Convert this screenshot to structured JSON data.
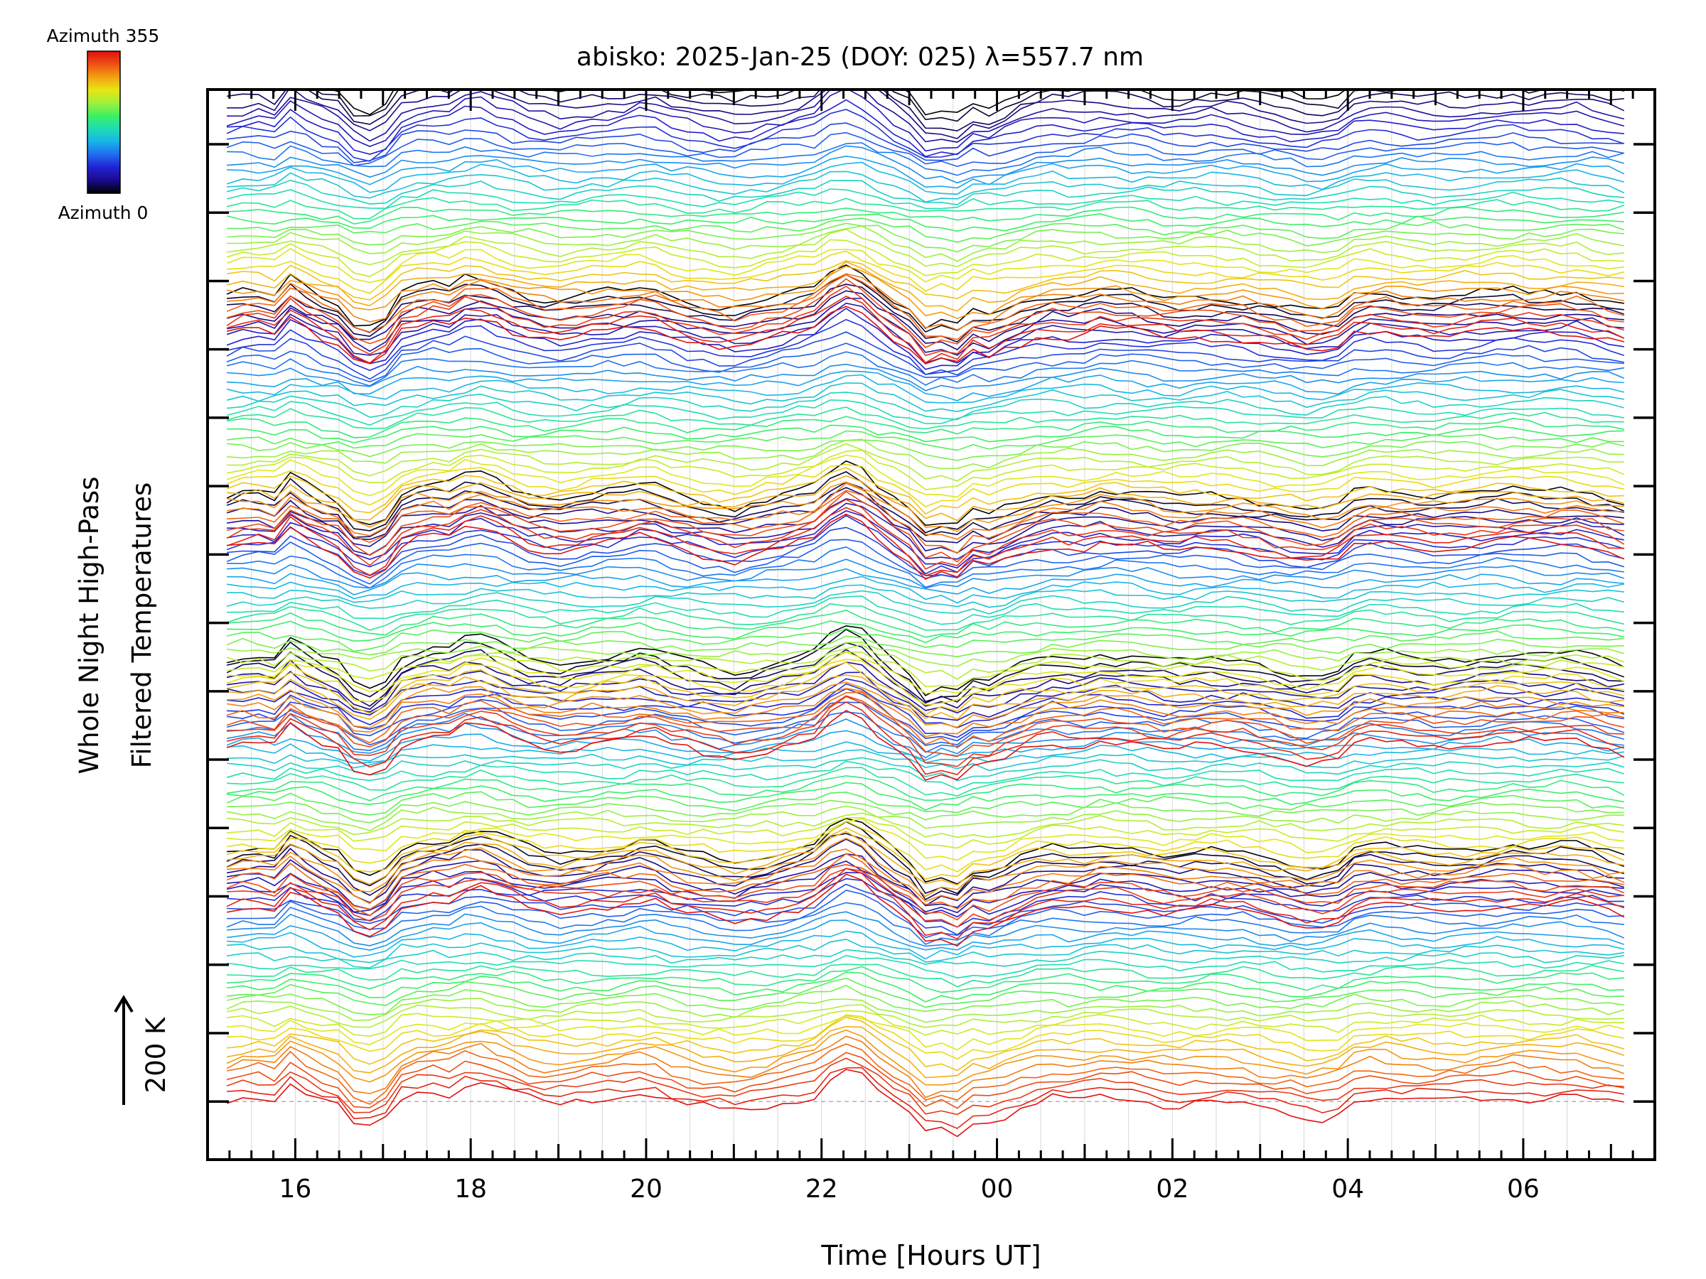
{
  "chart_data": {
    "type": "line",
    "title": "abisko: 2025-Jan-25 (DOY: 025) λ=557.7 nm",
    "xlabel": "Time [Hours UT]",
    "ylabel_line1": "Whole Night High-Pass",
    "ylabel_line2": "Filtered Temperatures",
    "scale_label": "200 K",
    "colorbar": {
      "top_label": "Azimuth 355",
      "bottom_label": "Azimuth 0",
      "colormap": [
        "#000000",
        "#1a0a8c",
        "#2222d4",
        "#1e6cf0",
        "#18b4e8",
        "#1edcb4",
        "#3cf064",
        "#a0f03c",
        "#e8e614",
        "#f4a010",
        "#ee5014",
        "#e01010"
      ]
    },
    "x_ticks": [
      {
        "hour": 0,
        "label": "16"
      },
      {
        "hour": 2,
        "label": "18"
      },
      {
        "hour": 4,
        "label": "20"
      },
      {
        "hour": 6,
        "label": "22"
      },
      {
        "hour": 8,
        "label": "00"
      },
      {
        "hour": 10,
        "label": "02"
      },
      {
        "hour": 12,
        "label": "04"
      },
      {
        "hour": 14,
        "label": "06"
      }
    ],
    "xlim": [
      -1.0,
      15.5
    ],
    "data_range": [
      -0.78,
      15.15
    ],
    "ylim": [
      -0.85,
      14.8
    ],
    "y_major_ticks": [
      0,
      1,
      2,
      3,
      4,
      5,
      6,
      7,
      8,
      9,
      10,
      11,
      12,
      13,
      14
    ],
    "baseline": 0,
    "groups": 5,
    "group_offsets": [
      0,
      2.8,
      5.2,
      8.1,
      11.2
    ],
    "traces_per_group": 36,
    "trace_spacing": 0.105,
    "azimuth_range": [
      0,
      355
    ],
    "common_signal": [
      [
        -0.78,
        0.0
      ],
      [
        -0.5,
        0.05
      ],
      [
        -0.2,
        0.0
      ],
      [
        0.0,
        0.22
      ],
      [
        0.15,
        0.05
      ],
      [
        0.5,
        -0.05
      ],
      [
        0.75,
        -0.28
      ],
      [
        1.0,
        -0.2
      ],
      [
        1.2,
        0.02
      ],
      [
        1.5,
        0.1
      ],
      [
        1.8,
        0.08
      ],
      [
        2.0,
        0.2
      ],
      [
        2.3,
        0.12
      ],
      [
        2.6,
        0.02
      ],
      [
        3.0,
        -0.03
      ],
      [
        3.4,
        0.02
      ],
      [
        3.8,
        0.05
      ],
      [
        4.0,
        0.1
      ],
      [
        4.3,
        0.0
      ],
      [
        4.6,
        -0.05
      ],
      [
        5.0,
        -0.1
      ],
      [
        5.3,
        -0.05
      ],
      [
        5.6,
        0.0
      ],
      [
        5.9,
        0.05
      ],
      [
        6.0,
        0.15
      ],
      [
        6.3,
        0.28
      ],
      [
        6.5,
        0.2
      ],
      [
        6.7,
        0.05
      ],
      [
        7.0,
        -0.1
      ],
      [
        7.2,
        -0.28
      ],
      [
        7.35,
        -0.22
      ],
      [
        7.5,
        -0.35
      ],
      [
        7.65,
        -0.1
      ],
      [
        7.8,
        -0.2
      ],
      [
        8.0,
        -0.15
      ],
      [
        8.3,
        -0.05
      ],
      [
        8.6,
        0.02
      ],
      [
        8.9,
        0.0
      ],
      [
        9.2,
        0.05
      ],
      [
        9.6,
        0.02
      ],
      [
        10.0,
        -0.03
      ],
      [
        10.4,
        0.0
      ],
      [
        10.8,
        -0.02
      ],
      [
        11.2,
        -0.08
      ],
      [
        11.6,
        -0.15
      ],
      [
        11.9,
        -0.1
      ],
      [
        12.0,
        0.0
      ],
      [
        12.3,
        0.05
      ],
      [
        12.6,
        0.02
      ],
      [
        13.0,
        0.0
      ],
      [
        13.4,
        0.02
      ],
      [
        13.8,
        0.05
      ],
      [
        14.2,
        0.03
      ],
      [
        14.6,
        0.05
      ],
      [
        15.15,
        -0.05
      ]
    ]
  }
}
